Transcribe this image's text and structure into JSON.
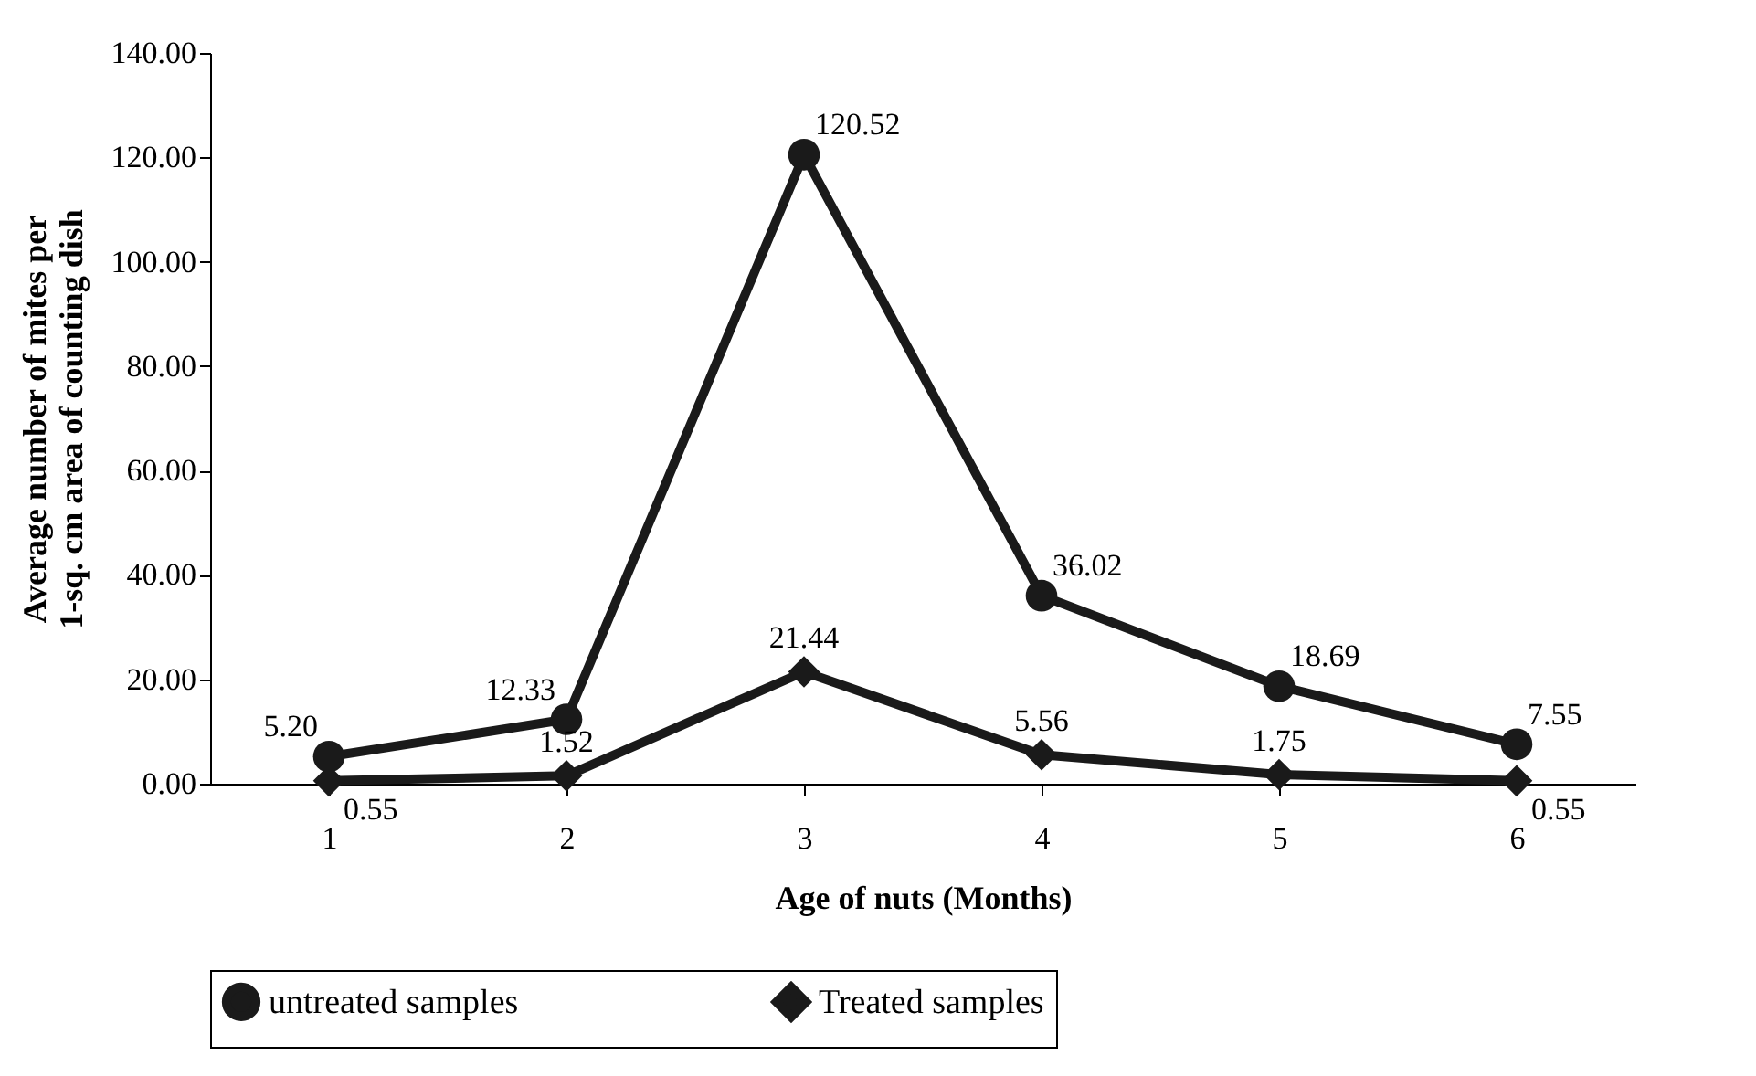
{
  "chart_data": {
    "type": "line",
    "xlabel": "Age of nuts (Months)",
    "ylabel": "Average number of mites per 1-sq. cm area of counting dish",
    "categories": [
      "1",
      "2",
      "3",
      "4",
      "5",
      "6"
    ],
    "series": [
      {
        "name": "untreated samples",
        "color": "#1a1a1a",
        "marker": "circle",
        "values": [
          5.2,
          12.33,
          120.52,
          36.02,
          18.69,
          7.55
        ],
        "value_labels": [
          "5.20",
          "12.33",
          "120.52",
          "36.02",
          "18.69",
          "7.55"
        ]
      },
      {
        "name": "Treated samples",
        "color": "#1a1a1a",
        "marker": "diamond",
        "values": [
          0.55,
          1.52,
          21.44,
          5.56,
          1.75,
          0.55
        ],
        "value_labels": [
          "0.55",
          "1.52",
          "21.44",
          "5.56",
          "1.75",
          "0.55"
        ]
      }
    ],
    "ylim": [
      0,
      140
    ],
    "yticks": [
      {
        "value": 0,
        "label": "0.00"
      },
      {
        "value": 20,
        "label": "20.00"
      },
      {
        "value": 40,
        "label": "40.00"
      },
      {
        "value": 60,
        "label": "60.00"
      },
      {
        "value": 80,
        "label": "80.00"
      },
      {
        "value": 100,
        "label": "100.00"
      },
      {
        "value": 120,
        "label": "120.00"
      },
      {
        "value": 140,
        "label": "140.00"
      }
    ],
    "grid": false,
    "legend": "bottom",
    "line_style": "solid"
  }
}
